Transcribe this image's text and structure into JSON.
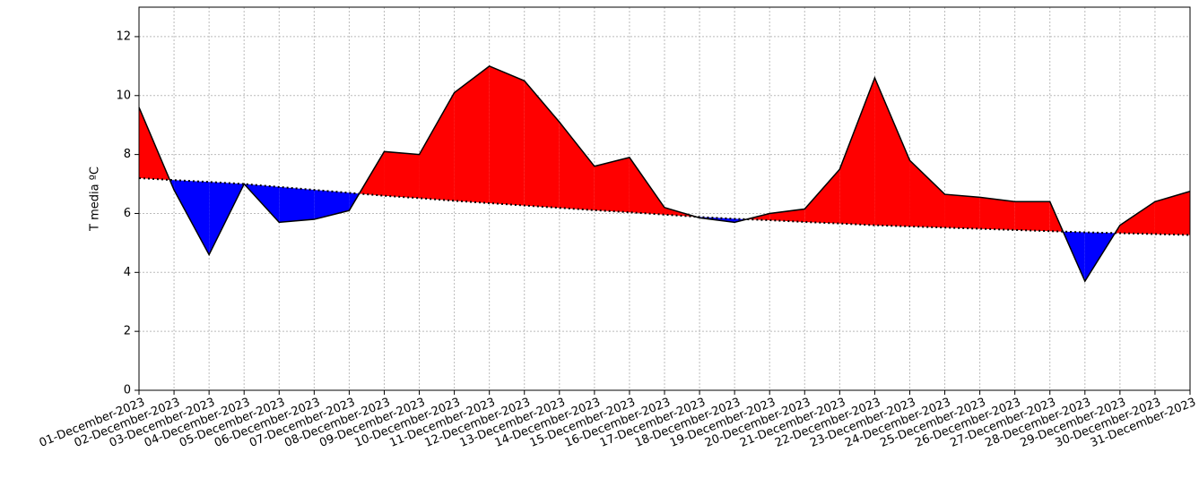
{
  "chart_data": {
    "type": "difference-area",
    "ylabel": "T media ºC",
    "categories": [
      "01-December-2023",
      "02-December-2023",
      "03-December-2023",
      "04-December-2023",
      "05-December-2023",
      "06-December-2023",
      "07-December-2023",
      "08-December-2023",
      "09-December-2023",
      "10-December-2023",
      "11-December-2023",
      "12-December-2023",
      "13-December-2023",
      "14-December-2023",
      "15-December-2023",
      "16-December-2023",
      "17-December-2023",
      "18-December-2023",
      "19-December-2023",
      "20-December-2023",
      "21-December-2023",
      "22-December-2023",
      "23-December-2023",
      "24-December-2023",
      "25-December-2023",
      "26-December-2023",
      "27-December-2023",
      "28-December-2023",
      "29-December-2023",
      "30-December-2023",
      "31-December-2023"
    ],
    "values": [
      9.6,
      6.8,
      4.6,
      7.0,
      5.7,
      5.8,
      6.1,
      8.1,
      8.0,
      10.1,
      11.0,
      10.5,
      9.1,
      7.6,
      7.9,
      6.2,
      5.85,
      5.7,
      6.0,
      6.15,
      7.5,
      10.6,
      7.8,
      6.65,
      6.55,
      6.4,
      6.4,
      3.7,
      5.6,
      6.4,
      6.75
    ],
    "reference": [
      7.2,
      7.13,
      7.07,
      7.0,
      6.9,
      6.8,
      6.7,
      6.6,
      6.52,
      6.43,
      6.35,
      6.27,
      6.19,
      6.11,
      6.04,
      5.96,
      5.88,
      5.82,
      5.77,
      5.71,
      5.66,
      5.6,
      5.56,
      5.52,
      5.48,
      5.44,
      5.4,
      5.36,
      5.33,
      5.3,
      5.27
    ],
    "line_color": "#000000",
    "above_color": "#ff0000",
    "below_color": "#0000ff",
    "ylim": [
      0,
      13
    ],
    "yticks": [
      0,
      2,
      4,
      6,
      8,
      10,
      12
    ],
    "grid": true
  }
}
